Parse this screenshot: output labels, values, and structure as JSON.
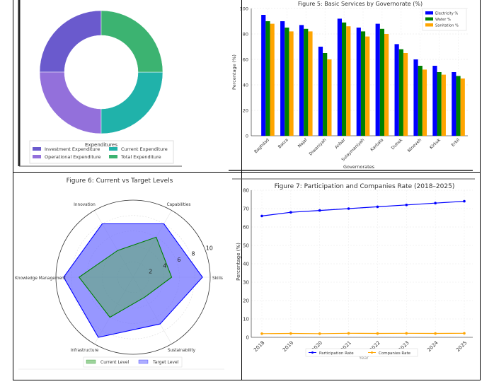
{
  "chart_data": [
    {
      "type": "pie",
      "variant": "donut",
      "title": "",
      "legend_title": "Expenditures",
      "legend_position": "bottom",
      "labels": [
        "Investment Expenditure",
        "Operational Expenditure",
        "Current Expenditure",
        "Total Expenditure"
      ],
      "values": [
        25,
        25,
        25,
        25
      ],
      "colors": [
        "#6a5acd",
        "#9370db",
        "#20b2aa",
        "#3cb371"
      ]
    },
    {
      "type": "bar",
      "title": "Figure 5: Basic Services by Governorate (%)",
      "xlabel": "Governorates",
      "ylabel": "Percentage (%)",
      "ylim": [
        0,
        100
      ],
      "yticks": [
        0,
        20,
        40,
        60,
        80,
        100
      ],
      "grid": true,
      "legend_position": "top-right",
      "categories": [
        "Baghdad",
        "Basra",
        "Najaf",
        "Diwaniyah",
        "Anbar",
        "Sulaymaniyah",
        "Karbala",
        "Duhok",
        "Nineveh",
        "Kirkuk",
        "Erbil"
      ],
      "series": [
        {
          "name": "Electricity %",
          "color": "#0000ff",
          "values": [
            95,
            90,
            87,
            70,
            92,
            85,
            88,
            72,
            60,
            55,
            50
          ]
        },
        {
          "name": "Water %",
          "color": "#008000",
          "values": [
            90,
            85,
            84,
            65,
            89,
            82,
            84,
            68,
            55,
            50,
            47
          ]
        },
        {
          "name": "Sanitation %",
          "color": "#ffa500",
          "values": [
            88,
            82,
            82,
            60,
            86,
            78,
            80,
            65,
            52,
            48,
            45
          ]
        }
      ]
    },
    {
      "type": "radar",
      "title": "Figure 6: Current vs Target Levels",
      "axes": [
        "Skills",
        "Capabilities",
        "Innovation",
        "Knowledge Management",
        "Infrastructure",
        "Sustainability"
      ],
      "rticks": [
        2,
        4,
        6,
        8,
        10
      ],
      "rlim": [
        0,
        10
      ],
      "legend_position": "bottom",
      "series": [
        {
          "name": "Current Level",
          "color": "#008000",
          "fill": "#4daf4a",
          "values": [
            5,
            6,
            4,
            7,
            6,
            3
          ]
        },
        {
          "name": "Target Level",
          "color": "#0000ff",
          "fill": "#6b6bff",
          "values": [
            9,
            8,
            8,
            9,
            9,
            7
          ]
        }
      ]
    },
    {
      "type": "line",
      "title": "Figure 7: Participation and Companies Rate (2018–2025)",
      "xlabel": "Year",
      "ylabel": "Percentage (%)",
      "ylim": [
        0,
        80
      ],
      "yticks": [
        0,
        10,
        20,
        30,
        40,
        50,
        60,
        70,
        80
      ],
      "grid": true,
      "legend_position": "bottom",
      "x": [
        "2018",
        "2019",
        "2020",
        "2021",
        "2022",
        "2023",
        "2024",
        "2025"
      ],
      "series": [
        {
          "name": "Participation Rate",
          "color": "#0000ff",
          "values": [
            66,
            68,
            69,
            70,
            71,
            72,
            73,
            74
          ]
        },
        {
          "name": "Companies Rate",
          "color": "#ffa500",
          "values": [
            2.0,
            2.1,
            2.0,
            2.2,
            2.1,
            2.2,
            2.1,
            2.2
          ]
        }
      ]
    }
  ]
}
